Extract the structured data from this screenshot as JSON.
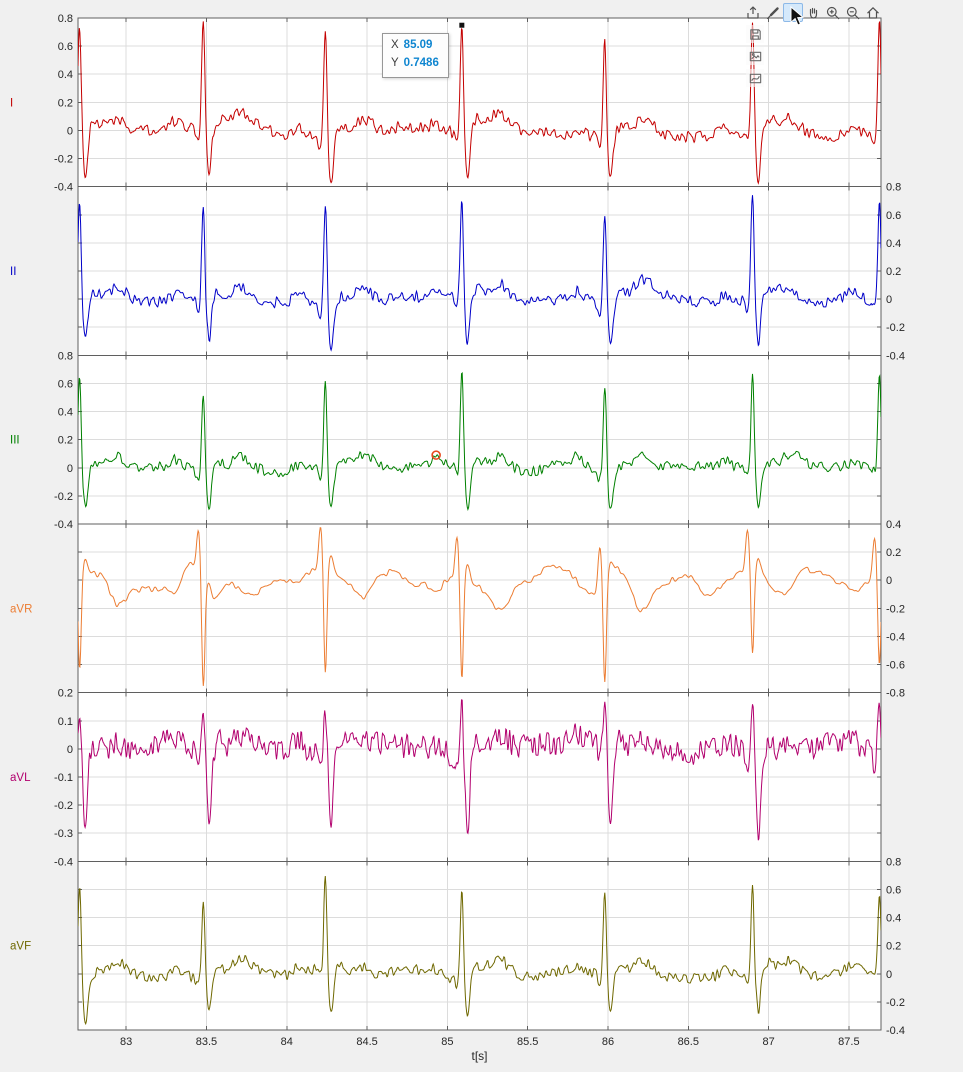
{
  "window": {
    "background": "#f0f0f0",
    "plot_background": "#ffffff"
  },
  "toolbar": {
    "buttons": [
      "export",
      "brush",
      "datatip",
      "pan",
      "zoom-in",
      "zoom-out",
      "home"
    ],
    "active_button": "datatip",
    "export_menu": [
      "save-figure",
      "copy-as-image",
      "copy-as-vector"
    ]
  },
  "chart_data": {
    "type": "line",
    "title": "",
    "xlabel": "t[s]",
    "ylabel": "",
    "grid": true,
    "legend": "none",
    "xlim": [
      82.7,
      87.7
    ],
    "xticks": [
      83,
      83.5,
      84,
      84.5,
      85,
      85.5,
      86,
      86.5,
      87,
      87.5
    ],
    "beat_times": [
      82.71,
      83.48,
      84.24,
      85.09,
      85.98,
      86.9,
      87.69
    ],
    "datatip": {
      "x_label": "X",
      "x_value": "85.09",
      "y_label": "Y",
      "y_value": "0.7486",
      "anchor": {
        "lead": "I",
        "t": 85.09,
        "v": 0.7486
      },
      "value_color": "#0e85d0"
    },
    "hover_marker": {
      "lead": "III",
      "t": 84.93,
      "v": 0.09,
      "color": "#e8481c"
    },
    "subplots": [
      {
        "lead": "I",
        "color": "#c40000",
        "ylim": [
          -0.4,
          0.8
        ],
        "tick_side": "left",
        "yticks": [
          0.8,
          0.6,
          0.4,
          0.2,
          0,
          -0.2,
          -0.4
        ],
        "morph": {
          "p": 0.05,
          "q": -0.08,
          "r": 0.76,
          "s": -0.36,
          "u": 0.05,
          "t": 0.09
        },
        "waveform": {
          "wander": 0.05,
          "wander_step": 0.25,
          "jitter": 0.042,
          "jitter_step": 0.013
        },
        "seed": 101
      },
      {
        "lead": "II",
        "color": "#0000c8",
        "ylim": [
          -0.4,
          0.8
        ],
        "tick_side": "right",
        "yticks": [
          0.8,
          0.6,
          0.4,
          0.2,
          0,
          -0.2,
          -0.4
        ],
        "morph": {
          "p": 0.06,
          "q": -0.07,
          "r": 0.73,
          "s": -0.33,
          "u": 0.05,
          "t": 0.1
        },
        "waveform": {
          "wander": 0.05,
          "wander_step": 0.25,
          "jitter": 0.04,
          "jitter_step": 0.013
        },
        "seed": 202
      },
      {
        "lead": "III",
        "color": "#008000",
        "ylim": [
          -0.4,
          0.8
        ],
        "tick_side": "left",
        "yticks": [
          0.8,
          0.6,
          0.4,
          0.2,
          0,
          -0.2,
          -0.4
        ],
        "morph": {
          "p": 0.05,
          "q": -0.06,
          "r": 0.64,
          "s": -0.28,
          "u": 0.04,
          "t": 0.09
        },
        "waveform": {
          "wander": 0.045,
          "wander_step": 0.25,
          "jitter": 0.038,
          "jitter_step": 0.013
        },
        "seed": 303
      },
      {
        "lead": "aVR",
        "color": "#ec7d33",
        "ylim": [
          -0.8,
          0.4
        ],
        "tick_side": "right",
        "yticks": [
          0.4,
          0.2,
          0,
          -0.2,
          -0.4,
          -0.6,
          -0.8
        ],
        "morph": {
          "p": -0.06,
          "pre": 0.3,
          "r": -0.7,
          "s": 0.1,
          "t": -0.15
        },
        "waveform": {
          "wander": 0.13,
          "wander_step": 0.14,
          "jitter": 0.022,
          "jitter_step": 0.02
        },
        "seed": 404
      },
      {
        "lead": "aVL",
        "color": "#b2006e",
        "ylim": [
          -0.4,
          0.2
        ],
        "tick_side": "left",
        "yticks": [
          0.2,
          0.1,
          0,
          -0.1,
          -0.2,
          -0.3,
          -0.4
        ],
        "morph": {
          "p": 0.03,
          "q": -0.05,
          "r": 0.16,
          "s": -0.28,
          "u": 0.03,
          "t": 0.04
        },
        "waveform": {
          "wander": 0.028,
          "wander_step": 0.3,
          "jitter": 0.045,
          "jitter_step": 0.011
        },
        "seed": 505
      },
      {
        "lead": "aVF",
        "color": "#6f6800",
        "ylim": [
          -0.4,
          0.8
        ],
        "tick_side": "right",
        "yticks": [
          0.8,
          0.6,
          0.4,
          0.2,
          0,
          -0.2,
          -0.4
        ],
        "morph": {
          "p": 0.05,
          "q": -0.06,
          "r": 0.63,
          "s": -0.3,
          "u": 0.04,
          "t": 0.09
        },
        "waveform": {
          "wander": 0.045,
          "wander_step": 0.25,
          "jitter": 0.038,
          "jitter_step": 0.013
        },
        "seed": 606
      }
    ]
  }
}
